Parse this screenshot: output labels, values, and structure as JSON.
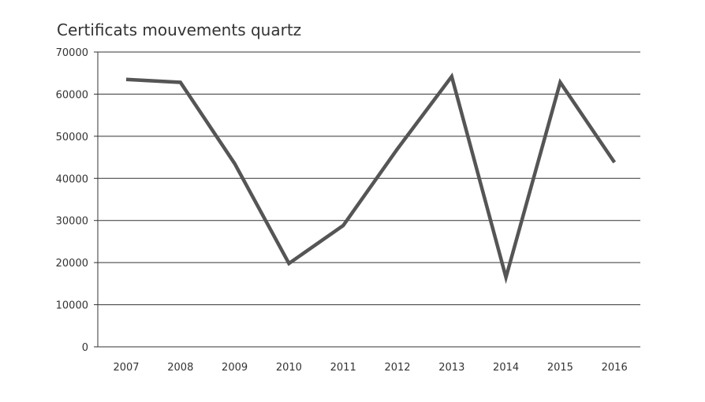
{
  "chart_data": {
    "type": "line",
    "title": "Certificats mouvements quartz",
    "xlabel": "",
    "ylabel": "",
    "categories": [
      "2007",
      "2008",
      "2009",
      "2010",
      "2011",
      "2012",
      "2013",
      "2014",
      "2015",
      "2016"
    ],
    "series": [
      {
        "values": [
          63500,
          62800,
          43500,
          19800,
          28800,
          47000,
          64200,
          16500,
          62800,
          43800
        ]
      }
    ],
    "ylim": [
      0,
      70000
    ],
    "yticks": [
      "0",
      "10000",
      "20000",
      "30000",
      "40000",
      "50000",
      "60000",
      "70000"
    ],
    "grid": "horizontal",
    "legend": "none",
    "colors": {
      "line": "#555555",
      "grid": "#333333",
      "text": "#333333"
    }
  }
}
